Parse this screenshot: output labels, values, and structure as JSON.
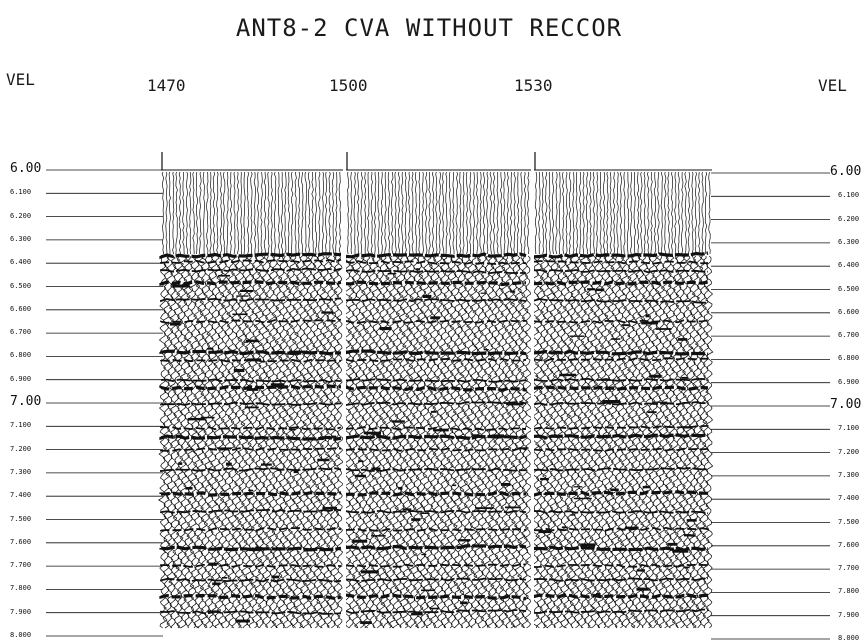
{
  "title": "ANT8-2  CVA WITHOUT RECCOR",
  "axis": {
    "vel_left": "VEL",
    "vel_right": "VEL",
    "cdp_labels": [
      "1470",
      "1500",
      "1530"
    ]
  },
  "velocity_labels_left": [
    "6.00",
    "6.100",
    "6.200",
    "6.300",
    "6.400",
    "6.500",
    "6.600",
    "6.700",
    "6.800",
    "6.900",
    "7.00",
    "7.100",
    "7.200",
    "7.300",
    "7.400",
    "7.500",
    "7.600",
    "7.700",
    "7.800",
    "7.900",
    "8.000"
  ],
  "velocity_labels_right": [
    "6.00",
    "6.100",
    "6.200",
    "6.300",
    "6.400",
    "6.500",
    "6.600",
    "6.700",
    "6.800",
    "6.900",
    "7.00",
    "7.100",
    "7.200",
    "7.300",
    "7.400",
    "7.500",
    "7.600",
    "7.700",
    "7.800",
    "7.900",
    "8.000"
  ],
  "colors": {
    "ink": "#111111",
    "paper": "#ffffff"
  }
}
